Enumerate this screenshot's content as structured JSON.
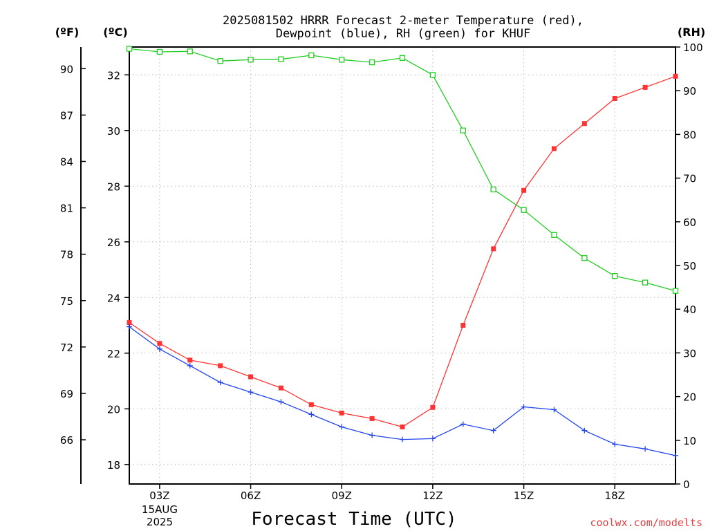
{
  "chart_data": {
    "type": "line",
    "title_line1": "2025081502 HRRR Forecast 2-meter Temperature (red),",
    "title_line2": "Dewpoint (blue), RH (green) for KHUF",
    "xlabel": "Forecast Time (UTC)",
    "credit": "coolwx.com/modelts",
    "units": {
      "fahrenheit": "(ºF)",
      "celsius": "(ºC)",
      "rh": "(RH)"
    },
    "date_label": [
      "15AUG",
      "2025"
    ],
    "x_hours": [
      2,
      3,
      4,
      5,
      6,
      7,
      8,
      9,
      10,
      11,
      12,
      13,
      14,
      15,
      16,
      17,
      18,
      19,
      20
    ],
    "x_tick_hours": [
      3,
      6,
      9,
      12,
      15,
      18
    ],
    "x_tick_labels": [
      "03Z",
      "06Z",
      "09Z",
      "12Z",
      "15Z",
      "18Z"
    ],
    "xlim": [
      2,
      20
    ],
    "ylim_c": [
      17.3,
      33.0
    ],
    "ylim_rh": [
      0,
      100
    ],
    "ylim_f": [
      63,
      92
    ],
    "celsius_ticks": [
      18,
      20,
      22,
      24,
      26,
      28,
      30,
      32
    ],
    "fahrenheit_ticks": [
      66,
      69,
      72,
      75,
      78,
      81,
      84,
      87,
      90
    ],
    "rh_ticks": [
      0,
      10,
      20,
      30,
      40,
      50,
      60,
      70,
      80,
      90,
      100
    ],
    "grid": true,
    "series": [
      {
        "name": "Temperature",
        "unit": "C",
        "color": "#ff3333",
        "marker": "filled-square",
        "values": [
          23.1,
          22.35,
          21.75,
          21.55,
          21.15,
          20.75,
          20.15,
          19.85,
          19.65,
          19.35,
          20.05,
          23.0,
          25.75,
          27.85,
          29.35,
          30.25,
          31.15,
          31.55,
          31.95
        ]
      },
      {
        "name": "Dewpoint",
        "unit": "C",
        "color": "#2244ee",
        "marker": "plus",
        "values": [
          22.95,
          22.15,
          21.55,
          20.95,
          20.6,
          20.25,
          19.8,
          19.35,
          19.05,
          18.9,
          18.93,
          19.45,
          19.22,
          20.07,
          19.97,
          19.22,
          18.73,
          18.56,
          18.32
        ]
      },
      {
        "name": "RH",
        "unit": "%",
        "color": "#22cc22",
        "marker": "open-square",
        "values": [
          99.6,
          98.9,
          99.0,
          96.8,
          97.1,
          97.2,
          98.1,
          97.1,
          96.5,
          97.5,
          93.6,
          80.9,
          67.4,
          62.7,
          57.0,
          51.7,
          47.6,
          46.1,
          44.2
        ]
      }
    ]
  }
}
